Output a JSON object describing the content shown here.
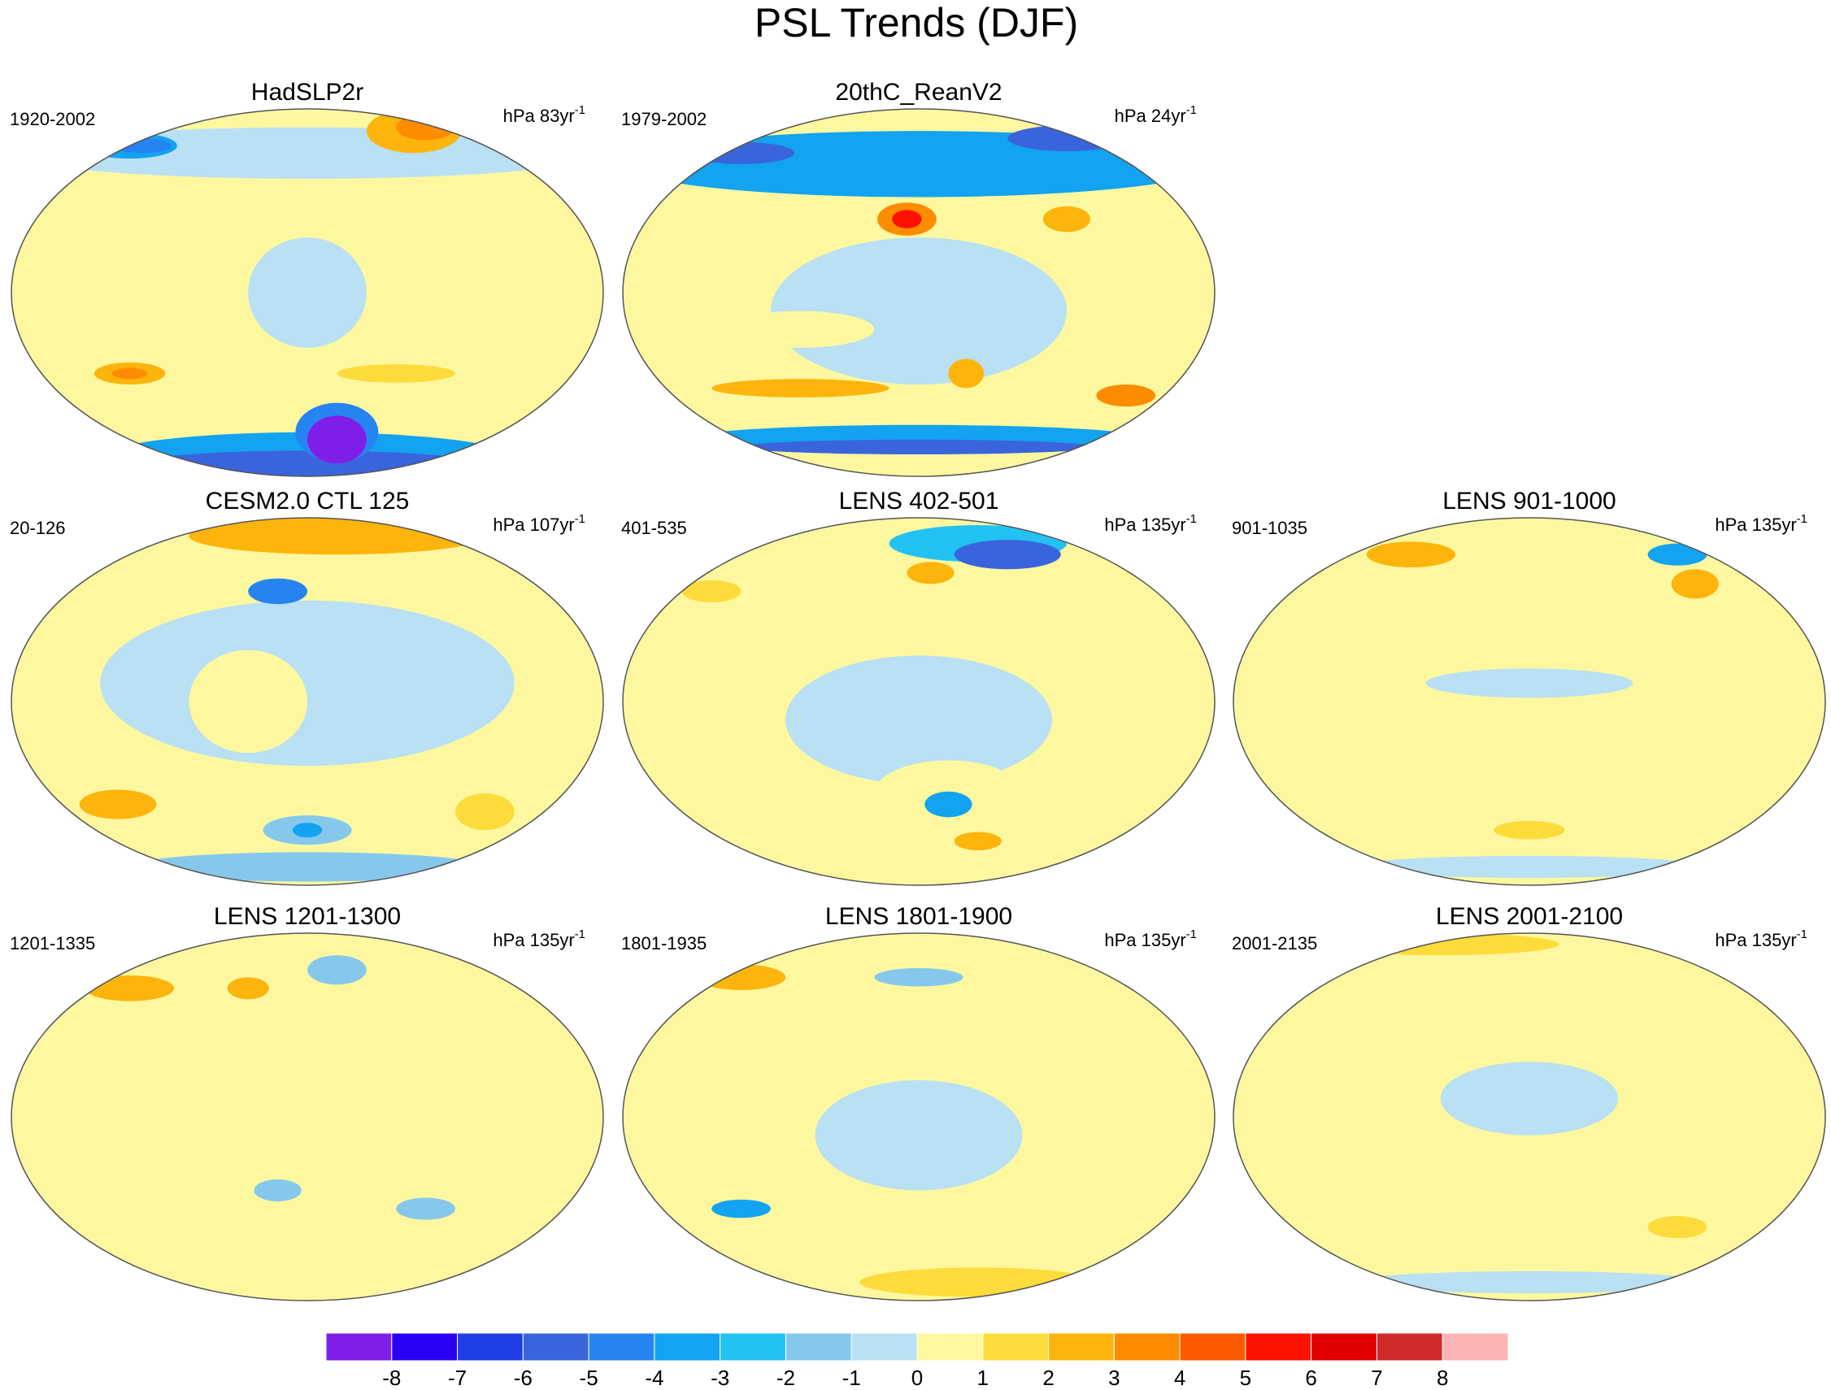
{
  "title": "PSL Trends (DJF)",
  "panels": [
    {
      "title": "HadSLP2r",
      "left": "1920-2002",
      "right": {
        "text": "hPa 83yr",
        "sup": "-1"
      }
    },
    {
      "title": "20thC_ReanV2",
      "left": "1979-2002",
      "right": {
        "text": "hPa 24yr",
        "sup": "-1"
      }
    },
    {
      "title": "CESM2.0 CTL 125",
      "left": "20-126",
      "right": {
        "text": "hPa 107yr",
        "sup": "-1"
      }
    },
    {
      "title": "LENS 402-501",
      "left": "401-535",
      "right": {
        "text": "hPa 135yr",
        "sup": "-1"
      }
    },
    {
      "title": "LENS 901-1000",
      "left": "901-1035",
      "right": {
        "text": "hPa 135yr",
        "sup": "-1"
      }
    },
    {
      "title": "LENS 1201-1300",
      "left": "1201-1335",
      "right": {
        "text": "hPa 135yr",
        "sup": "-1"
      }
    },
    {
      "title": "LENS 1801-1900",
      "left": "1801-1935",
      "right": {
        "text": "hPa 135yr",
        "sup": "-1"
      }
    },
    {
      "title": "LENS 2001-2100",
      "left": "2001-2135",
      "right": {
        "text": "hPa 135yr",
        "sup": "-1"
      }
    }
  ],
  "colorbar": {
    "colors": [
      "#7f1ee8",
      "#2a00f5",
      "#1f3ee8",
      "#3a64dc",
      "#2684f2",
      "#13a3f0",
      "#22c2f3",
      "#86c8ec",
      "#b9e0f3",
      "#fdf8a0",
      "#fddb3a",
      "#fdb40c",
      "#fd8c00",
      "#fd5a00",
      "#fd1200",
      "#e00000",
      "#d02a2a",
      "#fdb4b4"
    ],
    "labels": [
      -8,
      -7,
      -6,
      -5,
      -4,
      -3,
      -2,
      -1,
      0,
      1,
      2,
      3,
      4,
      5,
      6,
      7,
      8
    ]
  }
}
